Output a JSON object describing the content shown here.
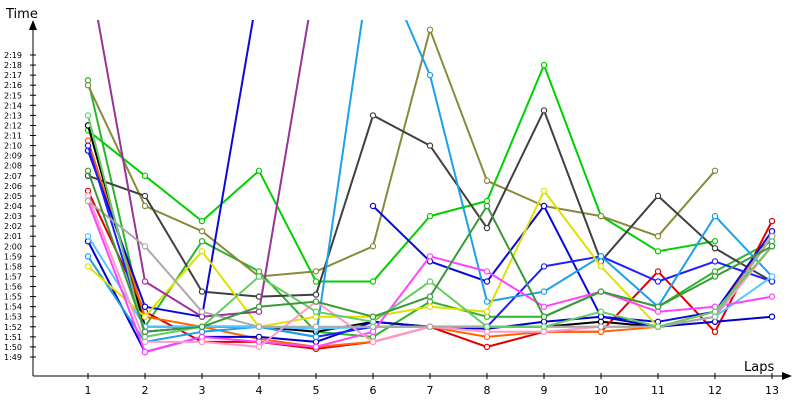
{
  "chart_data": {
    "type": "line",
    "title": "",
    "xlabel": "Laps",
    "ylabel": "Time",
    "x": [
      1,
      2,
      3,
      4,
      5,
      6,
      7,
      8,
      9,
      10,
      11,
      12,
      13
    ],
    "x_tick_labels": [
      "1",
      "2",
      "3",
      "4",
      "5",
      "6",
      "7",
      "8",
      "9",
      "10",
      "11",
      "12",
      "13"
    ],
    "ylim": [
      108,
      142
    ],
    "y_tick_values": [
      109,
      110,
      111,
      112,
      113,
      114,
      115,
      116,
      117,
      118,
      119,
      120,
      121,
      122,
      123,
      124,
      125,
      126,
      127,
      128,
      129,
      130,
      131,
      132,
      133,
      134,
      135,
      136,
      137,
      138,
      139
    ],
    "y_tick_labels": [
      "1:49",
      "1:50",
      "1:51",
      "1:52",
      "1:53",
      "1:54",
      "1:55",
      "1:56",
      "1:57",
      "1:58",
      "1:59",
      "2:00",
      "2:01",
      "2:02",
      "2:03",
      "2:04",
      "2:05",
      "2:06",
      "2:07",
      "2:08",
      "2:09",
      "2:10",
      "2:11",
      "2:12",
      "2:13",
      "2:14",
      "2:15",
      "2:16",
      "2:17",
      "2:18",
      "2:19"
    ],
    "grid": false,
    "legend": "none",
    "series": [
      {
        "color": "#2db52d",
        "values": [
          136.5,
          112.0,
          120.5,
          117.5,
          111.5,
          111.0,
          114.5,
          113.0,
          113.0,
          115.5,
          114.0,
          117.5,
          120.5
        ]
      },
      {
        "color": "#00d000",
        "values": [
          131.5,
          127.0,
          122.5,
          127.5,
          116.5,
          116.5,
          123.0,
          124.5,
          138.0,
          123.0,
          119.5,
          120.5,
          null
        ]
      },
      {
        "color": "#8a8a3c",
        "values": [
          136.0,
          124.0,
          121.5,
          117.0,
          117.5,
          120.0,
          141.5,
          126.5,
          124.0,
          123.0,
          121.0,
          127.5,
          null
        ]
      },
      {
        "color": "#404040",
        "values": [
          127.0,
          125.0,
          115.5,
          115.0,
          115.2,
          133.0,
          130.0,
          121.8,
          133.5,
          118.5,
          125.0,
          119.8,
          116.5
        ]
      },
      {
        "color": "#000000",
        "values": [
          132.0,
          112.0,
          112.0,
          112.0,
          111.5,
          112.5,
          112.0,
          112.0,
          112.0,
          112.5,
          112.0,
          113.0,
          121.0
        ]
      },
      {
        "color": "#e00000",
        "values": [
          125.5,
          113.5,
          110.5,
          110.5,
          109.8,
          110.5,
          112.0,
          110.0,
          111.5,
          111.5,
          117.5,
          111.5,
          122.5
        ]
      },
      {
        "color": "#ff6600",
        "values": [
          130.5,
          113.0,
          112.0,
          110.8,
          110.0,
          110.5,
          112.0,
          111.0,
          111.5,
          111.5,
          112.0,
          113.5,
          121.0
        ]
      },
      {
        "color": "#0000c8",
        "values": [
          120.5,
          109.5,
          111.0,
          111.0,
          110.5,
          112.5,
          112.0,
          111.8,
          112.5,
          113.0,
          112.0,
          112.5,
          113.0
        ]
      },
      {
        "color": "#0a0ad8",
        "values": [
          129.5,
          114.0,
          113.0,
          146.0,
          null,
          124.0,
          118.5,
          116.5,
          124.0,
          113.0,
          112.5,
          113.5,
          121.5
        ]
      },
      {
        "color": "#2020ff",
        "values": [
          130.0,
          111.5,
          112.0,
          112.0,
          111.0,
          112.0,
          112.0,
          112.0,
          118.0,
          119.0,
          116.5,
          118.5,
          116.5
        ]
      },
      {
        "color": "#1ea0e8",
        "values": [
          119.0,
          110.5,
          111.5,
          112.0,
          111.0,
          150.0,
          137.0,
          114.5,
          115.5,
          119.0,
          114.0,
          123.0,
          117.0
        ]
      },
      {
        "color": "#55c8ff",
        "values": [
          121.0,
          112.0,
          112.0,
          112.0,
          111.8,
          112.0,
          112.0,
          112.0,
          112.0,
          112.0,
          112.0,
          113.0,
          117.0
        ]
      },
      {
        "color": "#e0e000",
        "values": [
          118.0,
          113.0,
          119.5,
          112.0,
          113.0,
          113.0,
          114.0,
          113.5,
          125.5,
          118.0,
          112.0,
          113.5,
          120.0
        ]
      },
      {
        "color": "#993399",
        "values": [
          148.0,
          116.5,
          113.0,
          113.5,
          147.0,
          null,
          null,
          null,
          null,
          null,
          null,
          null,
          null
        ]
      },
      {
        "color": "#ff44ff",
        "values": [
          124.5,
          109.5,
          111.0,
          110.5,
          110.0,
          111.5,
          119.0,
          117.5,
          114.0,
          115.5,
          113.5,
          114.0,
          115.0
        ]
      },
      {
        "color": "#ff99cc",
        "values": [
          125.0,
          110.5,
          110.5,
          110.0,
          114.5,
          110.5,
          112.0,
          111.5,
          111.5,
          112.0,
          112.0,
          113.0,
          120.0
        ]
      },
      {
        "color": "#aaaaaa",
        "values": [
          124.5,
          120.0,
          113.5,
          112.0,
          112.0,
          112.0,
          112.0,
          112.0,
          112.0,
          112.0,
          112.0,
          113.0,
          121.0
        ]
      },
      {
        "color": "#66cc66",
        "values": [
          133.0,
          111.0,
          112.0,
          117.0,
          113.5,
          112.5,
          116.5,
          112.0,
          112.0,
          113.5,
          112.0,
          113.5,
          120.0
        ]
      },
      {
        "color": "#3a9a3a",
        "values": [
          127.5,
          111.5,
          112.0,
          114.0,
          114.5,
          113.0,
          115.0,
          124.0,
          113.0,
          115.5,
          114.0,
          117.0,
          120.0
        ]
      }
    ]
  }
}
